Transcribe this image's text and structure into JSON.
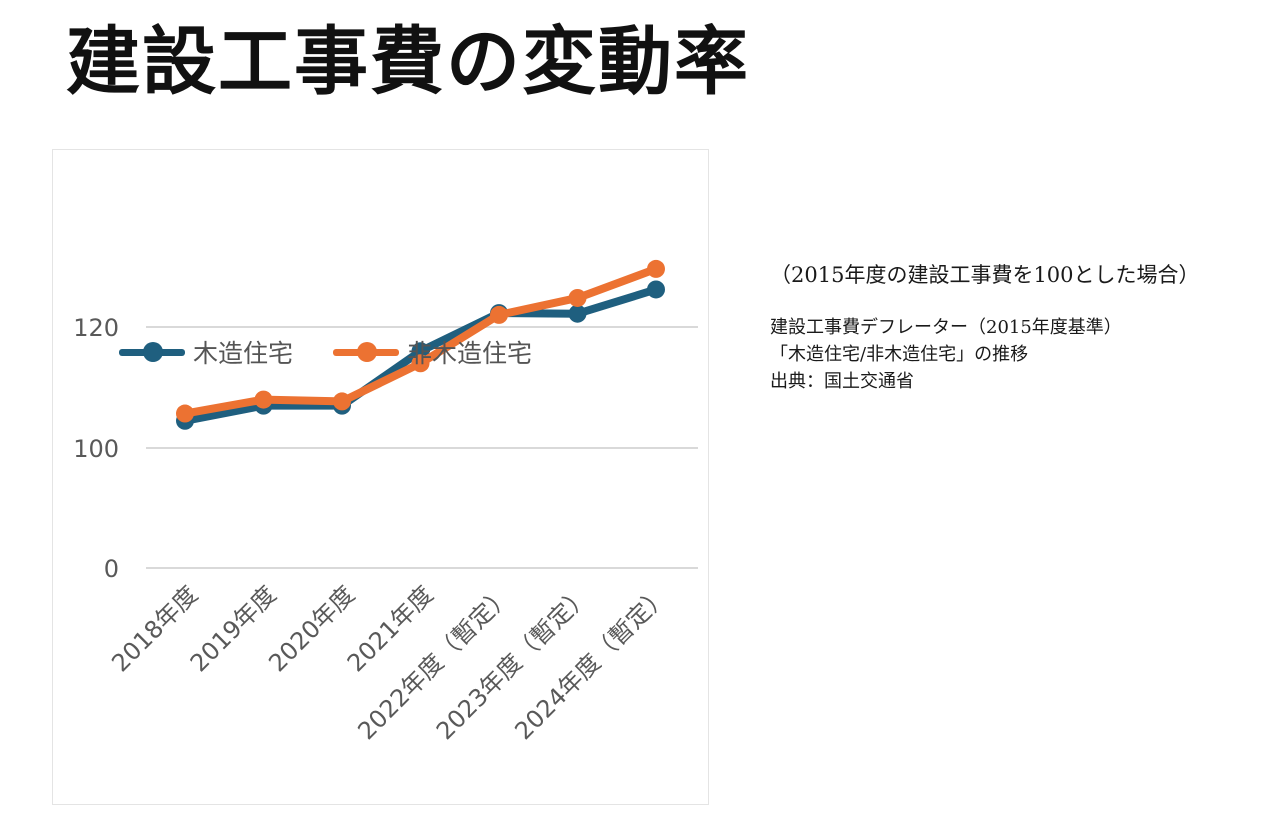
{
  "title": "建設工事費の変動率",
  "notes": {
    "basis": "（2015年度の建設工事費を100とした場合）",
    "lines": [
      "建設工事費デフレーター（2015年度基準）",
      "「木造住宅/非木造住宅」の推移",
      "出典：国土交通省"
    ]
  },
  "colors": {
    "wood": "#1f5f7f",
    "nonwood": "#ec7232",
    "grid": "#d9d9d9",
    "tick": "#595959"
  },
  "chart_data": {
    "type": "line",
    "title": "",
    "xlabel": "",
    "ylabel": "",
    "categories": [
      "2018年度",
      "2019年度",
      "2020年度",
      "2021年度",
      "2022年度（暫定）",
      "2023年度（暫定）",
      "2024年度（暫定）"
    ],
    "y_ticks": [
      "0",
      "100",
      "120"
    ],
    "grid": true,
    "legend_position": "top-left",
    "axis_note": "broken y-axis: 0 then 100 to 120",
    "series": [
      {
        "name": "木造住宅",
        "color": "#1f5f7f",
        "values": [
          104.5,
          107.0,
          107.0,
          116.0,
          122.3,
          122.2,
          126.2
        ]
      },
      {
        "name": "非木造住宅",
        "color": "#ec7232",
        "values": [
          105.7,
          108.0,
          107.7,
          114.0,
          122.0,
          124.8,
          129.6
        ]
      }
    ]
  }
}
